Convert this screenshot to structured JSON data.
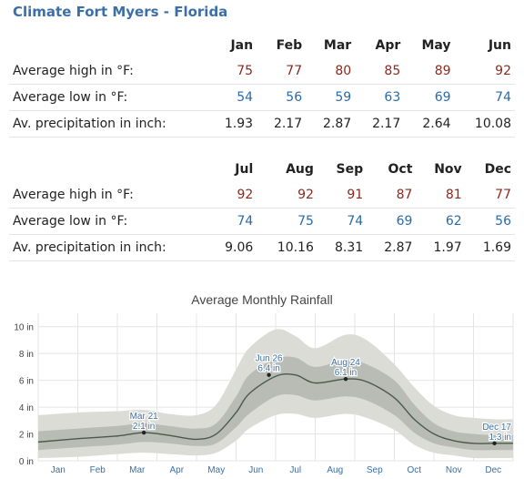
{
  "page": {
    "title": "Climate Fort Myers - Florida"
  },
  "tables": [
    {
      "months": [
        "Jan",
        "Feb",
        "Mar",
        "Apr",
        "May",
        "Jun"
      ],
      "rows": [
        {
          "label": "Average high in °F:",
          "kind": "hi",
          "values": [
            "75",
            "77",
            "80",
            "85",
            "89",
            "92"
          ]
        },
        {
          "label": "Average low in °F:",
          "kind": "lo",
          "values": [
            "54",
            "56",
            "59",
            "63",
            "69",
            "74"
          ]
        },
        {
          "label": "Av. precipitation in inch:",
          "kind": "pr",
          "values": [
            "1.93",
            "2.17",
            "2.87",
            "2.17",
            "2.64",
            "10.08"
          ]
        }
      ]
    },
    {
      "months": [
        "Jul",
        "Aug",
        "Sep",
        "Oct",
        "Nov",
        "Dec"
      ],
      "rows": [
        {
          "label": "Average high in °F:",
          "kind": "hi",
          "values": [
            "92",
            "92",
            "91",
            "87",
            "81",
            "77"
          ]
        },
        {
          "label": "Average low in °F:",
          "kind": "lo",
          "values": [
            "74",
            "75",
            "74",
            "69",
            "62",
            "56"
          ]
        },
        {
          "label": "Av. precipitation in inch:",
          "kind": "pr",
          "values": [
            "9.06",
            "10.16",
            "8.31",
            "2.87",
            "1.97",
            "1.69"
          ]
        }
      ]
    }
  ],
  "colors": {
    "high": "#8b2a1e",
    "low": "#2a6aa8",
    "title": "#3a6fa8",
    "median_line": "#4a5a4a"
  },
  "chart_data": {
    "type": "area",
    "title": "Average Monthly Rainfall",
    "categories": [
      "Jan",
      "Feb",
      "Mar",
      "Apr",
      "May",
      "Jun",
      "Jul",
      "Aug",
      "Sep",
      "Oct",
      "Nov",
      "Dec"
    ],
    "y_ticks": [
      "0 in",
      "2 in",
      "4 in",
      "6 in",
      "8 in",
      "10 in"
    ],
    "ylim": [
      0,
      11
    ],
    "x_range": [
      0,
      12
    ],
    "grid": true,
    "series": [
      {
        "role": "median",
        "x": [
          0,
          1,
          2,
          2.67,
          3.3,
          4,
          4.5,
          5,
          5.33,
          6,
          6.5,
          7,
          7.77,
          8.3,
          9,
          9.5,
          10,
          10.5,
          11,
          11.53,
          12
        ],
        "values": [
          1.4,
          1.65,
          1.85,
          2.1,
          1.9,
          1.6,
          2.0,
          3.6,
          5.0,
          6.3,
          6.4,
          5.8,
          6.1,
          5.9,
          4.7,
          3.1,
          2.0,
          1.5,
          1.3,
          1.3,
          1.3
        ]
      },
      {
        "role": "inner-band",
        "x": [
          0,
          1,
          2,
          2.67,
          3.3,
          4,
          4.5,
          5,
          5.33,
          6,
          6.5,
          7,
          7.77,
          8.3,
          9,
          9.5,
          10,
          10.5,
          11,
          11.53,
          12
        ],
        "low": [
          0.8,
          1.0,
          1.2,
          1.4,
          1.3,
          1.1,
          1.3,
          2.5,
          3.5,
          4.8,
          4.9,
          4.5,
          4.8,
          4.5,
          3.4,
          2.1,
          1.3,
          1.0,
          0.8,
          0.8,
          0.8
        ],
        "high": [
          2.2,
          2.4,
          2.6,
          2.8,
          2.6,
          2.4,
          2.8,
          4.8,
          6.4,
          7.6,
          7.7,
          7.0,
          7.5,
          7.2,
          6.0,
          4.2,
          2.8,
          2.2,
          2.0,
          1.9,
          1.9
        ]
      },
      {
        "role": "outer-band",
        "x": [
          0,
          1,
          2,
          2.67,
          3.3,
          4,
          4.5,
          5,
          5.33,
          6,
          6.5,
          7,
          7.77,
          8.3,
          9,
          9.5,
          10,
          10.5,
          11,
          11.53,
          12
        ],
        "low": [
          0.2,
          0.3,
          0.5,
          0.6,
          0.5,
          0.4,
          0.6,
          1.5,
          2.4,
          3.4,
          3.5,
          3.2,
          3.5,
          3.2,
          2.3,
          1.2,
          0.6,
          0.4,
          0.2,
          0.2,
          0.2
        ],
        "high": [
          3.4,
          3.6,
          3.7,
          3.8,
          3.5,
          3.4,
          4.2,
          6.8,
          8.4,
          9.8,
          9.3,
          8.4,
          9.4,
          9.0,
          7.2,
          5.5,
          4.1,
          3.4,
          3.2,
          3.1,
          3.1
        ]
      }
    ],
    "annotations": [
      {
        "x": 2.67,
        "y": 2.1,
        "date": "Mar 21",
        "value": "2.1 in"
      },
      {
        "x": 5.83,
        "y": 6.4,
        "date": "Jun 26",
        "value": "6.4 in"
      },
      {
        "x": 7.77,
        "y": 6.1,
        "date": "Aug 24",
        "value": "6.1 in"
      },
      {
        "x": 11.53,
        "y": 1.3,
        "date": "Dec 17",
        "value": "1.3 in"
      }
    ]
  }
}
